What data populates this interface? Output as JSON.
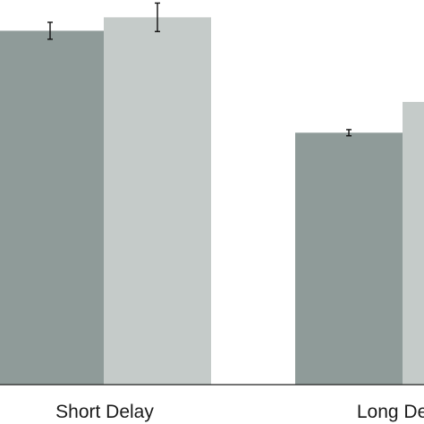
{
  "chart_data": {
    "type": "bar",
    "title": "",
    "xlabel": "",
    "ylabel": "",
    "categories": [
      "Short Delay",
      "Long Delay"
    ],
    "ylim": [
      0,
      1
    ],
    "grid": false,
    "series": [
      {
        "values": [
          0.92,
          0.655
        ],
        "errors": [
          0.022,
          0.008
        ],
        "color": "#8f9b99"
      },
      {
        "values": [
          0.955,
          0.735
        ],
        "errors": [
          0.037,
          0.0
        ],
        "color": "#c5cbc9"
      }
    ]
  }
}
